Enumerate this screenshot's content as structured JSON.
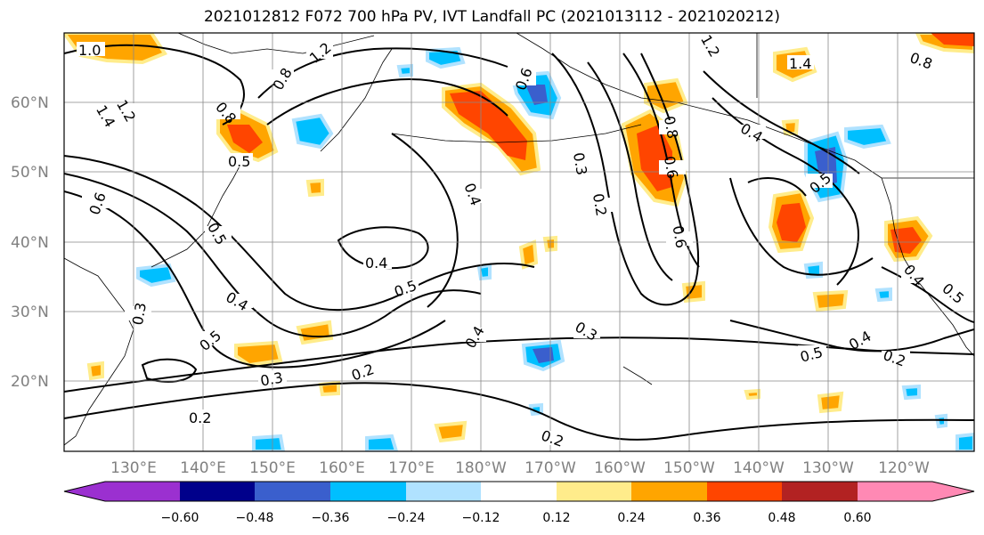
{
  "title": "2021012812 F072 700 hPa PV, IVT Landfall PC (2021013112 - 2021020212)",
  "lat_labels": [
    "60°N",
    "50°N",
    "40°N",
    "30°N",
    "20°N"
  ],
  "lon_labels": [
    "130°E",
    "140°E",
    "150°E",
    "160°E",
    "170°E",
    "180°W",
    "170°W",
    "160°W",
    "150°W",
    "140°W",
    "130°W",
    "120°W"
  ],
  "contour_labels": [
    "1.0",
    "1.2",
    "1.4",
    "1.2",
    "0.8",
    "0.5",
    "0.6",
    "1.2",
    "0.8",
    "0.6",
    "0.3",
    "0.2",
    "0.4",
    "0.4",
    "0.5",
    "0.6",
    "0.4",
    "0.4",
    "0.5",
    "0.3",
    "0.6",
    "0.4",
    "0.5",
    "0.3",
    "0.2",
    "0.2",
    "0.3",
    "0.2",
    "0.5",
    "0.4",
    "0.2",
    "0.4",
    "0.5",
    "0.8",
    "0.5",
    "1.4",
    "0.8"
  ],
  "colorbar": {
    "ticks": [
      "−0.60",
      "−0.48",
      "−0.36",
      "−0.24",
      "−0.12",
      "0.12",
      "0.24",
      "0.36",
      "0.48",
      "0.60"
    ],
    "colors": [
      "#9b30d0",
      "#00008b",
      "#3a5fcd",
      "#00bfff",
      "#b0e2ff",
      "#ffffff",
      "#ffec8b",
      "#ffa500",
      "#ff4500",
      "#b22222",
      "#ff89b4"
    ]
  },
  "shading_colors": {
    "neg_strong": "#3a5fcd",
    "neg_mid": "#00bfff",
    "neg_weak": "#b0e2ff",
    "pos_weak": "#ffec8b",
    "pos_mid": "#ffa500",
    "pos_strong": "#ff4500"
  }
}
